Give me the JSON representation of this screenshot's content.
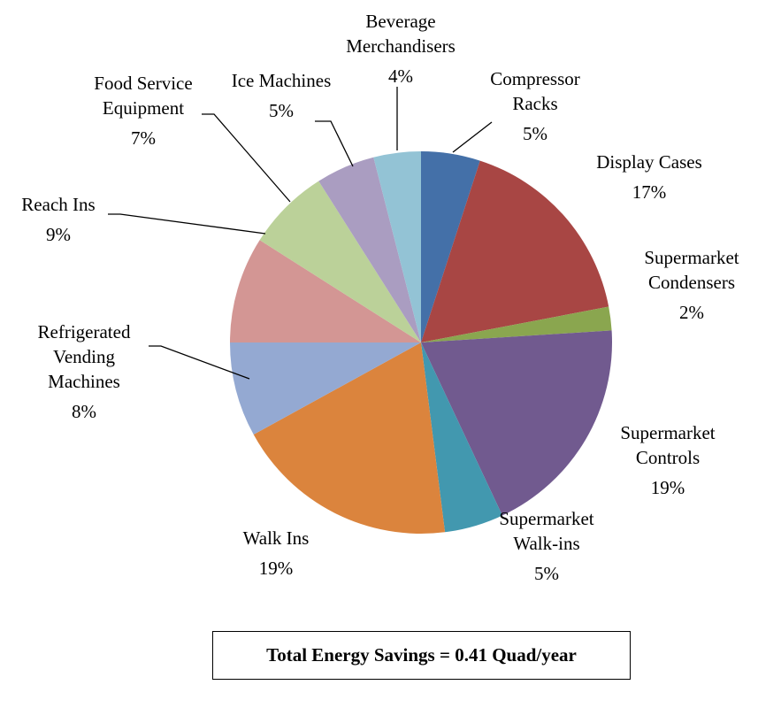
{
  "chart_data": {
    "type": "pie",
    "categories": [
      "Compressor Racks",
      "Display Cases",
      "Supermarket Condensers",
      "Supermarket Controls",
      "Supermarket Walk-ins",
      "Walk Ins",
      "Refrigerated Vending Machines",
      "Reach Ins",
      "Food Service Equipment",
      "Ice Machines",
      "Beverage Merchandisers"
    ],
    "values": [
      5,
      17,
      2,
      19,
      5,
      19,
      8,
      9,
      7,
      5,
      4
    ],
    "value_labels": [
      "5%",
      "17%",
      "2%",
      "19%",
      "5%",
      "19%",
      "8%",
      "9%",
      "7%",
      "5%",
      "4%"
    ],
    "colors": [
      "#4470a8",
      "#a84644",
      "#8aa64f",
      "#715a8f",
      "#4298af",
      "#db843d",
      "#94a9d2",
      "#d39694",
      "#bbd199",
      "#aa9dc1",
      "#93c3d5"
    ],
    "annotation": "Total Energy Savings = 0.41 Quad/year"
  }
}
